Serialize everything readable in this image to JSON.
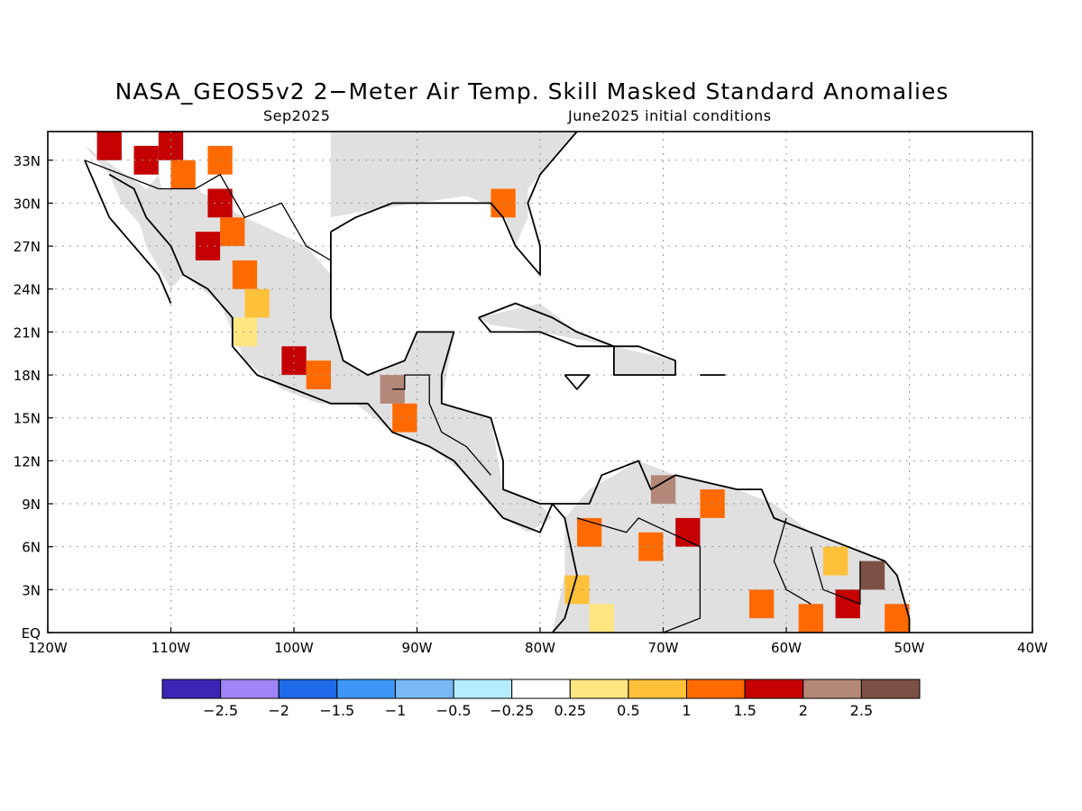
{
  "title": "NASA_GEOS5v2 2−Meter Air Temp. Skill Masked Standard Anomalies",
  "valid_period": "Sep2025",
  "initial_conditions": "June2025 initial conditions",
  "map": {
    "lon_range": [
      -120,
      -40
    ],
    "lat_range": [
      0,
      35
    ],
    "lon_ticks": [
      {
        "value": -120,
        "label": "120W"
      },
      {
        "value": -110,
        "label": "110W"
      },
      {
        "value": -100,
        "label": "100W"
      },
      {
        "value": -90,
        "label": "90W"
      },
      {
        "value": -80,
        "label": "80W"
      },
      {
        "value": -70,
        "label": "70W"
      },
      {
        "value": -60,
        "label": "60W"
      },
      {
        "value": -50,
        "label": "50W"
      },
      {
        "value": -40,
        "label": "40W"
      }
    ],
    "lat_ticks": [
      {
        "value": 0,
        "label": "EQ"
      },
      {
        "value": 3,
        "label": "3N"
      },
      {
        "value": 6,
        "label": "6N"
      },
      {
        "value": 9,
        "label": "9N"
      },
      {
        "value": 12,
        "label": "12N"
      },
      {
        "value": 15,
        "label": "15N"
      },
      {
        "value": 18,
        "label": "18N"
      },
      {
        "value": 21,
        "label": "21N"
      },
      {
        "value": 24,
        "label": "24N"
      },
      {
        "value": 27,
        "label": "27N"
      },
      {
        "value": 30,
        "label": "30N"
      },
      {
        "value": 33,
        "label": "33N"
      }
    ],
    "grid": "dotted",
    "masked_land_color": "#e0e0e0"
  },
  "colorbar": {
    "colors": [
      "#3b24b3",
      "#9f85f5",
      "#1f6ae8",
      "#3d96f5",
      "#78b9f5",
      "#b4ecfb",
      "#ffffff",
      "#ffe680",
      "#ffc13a",
      "#ff6a00",
      "#c40000",
      "#b48878",
      "#7d5044"
    ],
    "labels": [
      "−2.5",
      "−2",
      "−1.5",
      "−1",
      "−0.5",
      "−0.25",
      "0.25",
      "0.5",
      "1",
      "1.5",
      "2",
      "2.5"
    ]
  },
  "anomaly_cells": [
    {
      "lon": -115,
      "lat": 34,
      "v": 1.8
    },
    {
      "lon": -112,
      "lat": 33,
      "v": 1.8
    },
    {
      "lon": -110,
      "lat": 34,
      "v": 1.8
    },
    {
      "lon": -109,
      "lat": 32,
      "v": 1.3
    },
    {
      "lon": -106,
      "lat": 33,
      "v": 1.3
    },
    {
      "lon": -106,
      "lat": 30,
      "v": 1.8
    },
    {
      "lon": -105,
      "lat": 28,
      "v": 1.3
    },
    {
      "lon": -107,
      "lat": 27,
      "v": 1.8
    },
    {
      "lon": -104,
      "lat": 25,
      "v": 1.3
    },
    {
      "lon": -103,
      "lat": 23,
      "v": 0.7
    },
    {
      "lon": -104,
      "lat": 21,
      "v": 0.4
    },
    {
      "lon": -100,
      "lat": 19,
      "v": 1.8
    },
    {
      "lon": -98,
      "lat": 18,
      "v": 1.3
    },
    {
      "lon": -92,
      "lat": 17,
      "v": 2.3
    },
    {
      "lon": -91,
      "lat": 15,
      "v": 1.3
    },
    {
      "lon": -83,
      "lat": 30,
      "v": 1.3
    },
    {
      "lon": -76,
      "lat": 7,
      "v": 1.3
    },
    {
      "lon": -77,
      "lat": 3,
      "v": 0.7
    },
    {
      "lon": -75,
      "lat": 1,
      "v": 0.4
    },
    {
      "lon": -71,
      "lat": 6,
      "v": 1.3
    },
    {
      "lon": -68,
      "lat": 7,
      "v": 1.8
    },
    {
      "lon": -70,
      "lat": 10,
      "v": 2.3
    },
    {
      "lon": -66,
      "lat": 9,
      "v": 1.3
    },
    {
      "lon": -62,
      "lat": 2,
      "v": 1.3
    },
    {
      "lon": -58,
      "lat": 1,
      "v": 1.3
    },
    {
      "lon": -55,
      "lat": 2,
      "v": 1.8
    },
    {
      "lon": -53,
      "lat": 4,
      "v": 2.8
    },
    {
      "lon": -51,
      "lat": 1,
      "v": 1.3
    },
    {
      "lon": -56,
      "lat": 5,
      "v": 0.7
    }
  ],
  "coastlines": [
    [
      [
        -117,
        33
      ],
      [
        -116,
        31
      ],
      [
        -115,
        29
      ],
      [
        -113,
        27
      ],
      [
        -111,
        25
      ],
      [
        -110,
        23
      ]
    ],
    [
      [
        -115,
        32
      ],
      [
        -113,
        31
      ],
      [
        -112,
        29
      ],
      [
        -110,
        27
      ],
      [
        -109,
        25
      ],
      [
        -107,
        24
      ],
      [
        -105,
        22
      ],
      [
        -105,
        20
      ],
      [
        -103,
        18
      ],
      [
        -100,
        17
      ],
      [
        -97,
        16
      ],
      [
        -94,
        16
      ],
      [
        -92,
        14
      ],
      [
        -89,
        13
      ],
      [
        -87,
        12
      ],
      [
        -85,
        10
      ],
      [
        -83,
        8
      ],
      [
        -80,
        7
      ],
      [
        -79,
        9
      ],
      [
        -78,
        8
      ],
      [
        -77,
        4
      ],
      [
        -78,
        1
      ],
      [
        -79,
        0
      ]
    ],
    [
      [
        -97,
        28
      ],
      [
        -97,
        25
      ],
      [
        -97,
        22
      ],
      [
        -96,
        19
      ],
      [
        -94,
        18
      ],
      [
        -91,
        19
      ],
      [
        -90,
        21
      ],
      [
        -87,
        21
      ],
      [
        -88,
        18
      ],
      [
        -88,
        16
      ],
      [
        -84,
        15
      ],
      [
        -83,
        12
      ],
      [
        -83,
        10
      ],
      [
        -80,
        9
      ],
      [
        -76,
        9
      ],
      [
        -75,
        11
      ],
      [
        -72,
        12
      ],
      [
        -71,
        10
      ],
      [
        -69,
        11
      ],
      [
        -64,
        10
      ],
      [
        -62,
        10
      ],
      [
        -61,
        8
      ],
      [
        -58,
        7
      ],
      [
        -55,
        6
      ],
      [
        -52,
        5
      ],
      [
        -51,
        4
      ],
      [
        -50,
        1
      ],
      [
        -50,
        0
      ]
    ],
    [
      [
        -97,
        28
      ],
      [
        -95,
        29
      ],
      [
        -92,
        30
      ],
      [
        -89,
        30
      ],
      [
        -86,
        30
      ],
      [
        -84,
        30
      ],
      [
        -83,
        29
      ],
      [
        -82,
        27
      ],
      [
        -80,
        25
      ],
      [
        -80,
        27
      ],
      [
        -81,
        30
      ],
      [
        -80,
        32
      ],
      [
        -79,
        33
      ],
      [
        -77,
        35
      ]
    ],
    [
      [
        -85,
        22
      ],
      [
        -82,
        23
      ],
      [
        -79,
        22
      ],
      [
        -77,
        21
      ],
      [
        -74,
        20
      ],
      [
        -77,
        20
      ],
      [
        -80,
        21
      ],
      [
        -84,
        21
      ],
      [
        -85,
        22
      ]
    ],
    [
      [
        -74,
        20
      ],
      [
        -72,
        20
      ],
      [
        -69,
        19
      ],
      [
        -69,
        18
      ],
      [
        -72,
        18
      ],
      [
        -74,
        18
      ],
      [
        -74,
        20
      ]
    ],
    [
      [
        -78,
        18
      ],
      [
        -76,
        18
      ],
      [
        -77,
        17
      ],
      [
        -78,
        18
      ]
    ],
    [
      [
        -67,
        18
      ],
      [
        -65,
        18
      ],
      [
        -66,
        18
      ],
      [
        -67,
        18
      ]
    ]
  ],
  "borders": [
    [
      [
        -117,
        33
      ],
      [
        -111,
        31
      ],
      [
        -108,
        31
      ],
      [
        -106,
        32
      ],
      [
        -104,
        29
      ],
      [
        -101,
        30
      ],
      [
        -99,
        27
      ],
      [
        -97,
        26
      ]
    ],
    [
      [
        -92,
        17
      ],
      [
        -91,
        17
      ],
      [
        -91,
        18
      ],
      [
        -89,
        18
      ],
      [
        -89,
        16
      ]
    ],
    [
      [
        -89,
        16
      ],
      [
        -88,
        14
      ],
      [
        -86,
        13
      ],
      [
        -85,
        12
      ],
      [
        -84,
        11
      ]
    ],
    [
      [
        -77,
        8
      ],
      [
        -73,
        7
      ],
      [
        -72,
        8
      ],
      [
        -67,
        6
      ],
      [
        -67,
        1
      ],
      [
        -70,
        0
      ]
    ],
    [
      [
        -60,
        8
      ],
      [
        -61,
        5
      ],
      [
        -60,
        3
      ],
      [
        -58,
        2
      ]
    ],
    [
      [
        -58,
        6
      ],
      [
        -57,
        3
      ],
      [
        -54,
        2
      ],
      [
        -54,
        5
      ]
    ]
  ],
  "masked_land": [
    [
      [
        -117,
        34
      ],
      [
        -112,
        31
      ],
      [
        -108,
        31
      ],
      [
        -104,
        29
      ],
      [
        -99,
        27
      ],
      [
        -97,
        25
      ],
      [
        -97,
        22
      ],
      [
        -96,
        19
      ],
      [
        -94,
        18
      ],
      [
        -91,
        19
      ],
      [
        -90,
        21
      ],
      [
        -87,
        21
      ],
      [
        -88,
        16
      ],
      [
        -84,
        15
      ],
      [
        -83,
        10
      ],
      [
        -80,
        9
      ],
      [
        -79,
        8
      ],
      [
        -81,
        7
      ],
      [
        -83,
        8
      ],
      [
        -86,
        11
      ],
      [
        -89,
        13
      ],
      [
        -92,
        14
      ],
      [
        -95,
        16
      ],
      [
        -98,
        16
      ],
      [
        -101,
        17
      ],
      [
        -104,
        19
      ],
      [
        -105,
        21
      ],
      [
        -106,
        23
      ],
      [
        -109,
        25
      ],
      [
        -111,
        27
      ],
      [
        -114,
        30
      ],
      [
        -115,
        32
      ]
    ],
    [
      [
        -97,
        35
      ],
      [
        -97,
        29
      ],
      [
        -94,
        29.5
      ],
      [
        -90,
        30
      ],
      [
        -86,
        30.5
      ],
      [
        -83,
        29.5
      ],
      [
        -82,
        27
      ],
      [
        -81,
        29
      ],
      [
        -81,
        31
      ],
      [
        -79,
        33
      ],
      [
        -77,
        35
      ]
    ],
    [
      [
        -111,
        32
      ],
      [
        -110,
        28
      ],
      [
        -108,
        26
      ],
      [
        -110,
        24
      ],
      [
        -112,
        27
      ],
      [
        -113,
        30
      ]
    ],
    [
      [
        -78,
        8
      ],
      [
        -76,
        10
      ],
      [
        -72,
        12
      ],
      [
        -69,
        11
      ],
      [
        -64,
        10
      ],
      [
        -61,
        9
      ],
      [
        -58,
        7
      ],
      [
        -55,
        6
      ],
      [
        -52,
        5
      ],
      [
        -51,
        4
      ],
      [
        -50,
        1
      ],
      [
        -50,
        0
      ],
      [
        -79,
        0
      ],
      [
        -78,
        4
      ]
    ],
    [
      [
        -85,
        22
      ],
      [
        -80,
        23
      ],
      [
        -77,
        21
      ],
      [
        -74,
        20
      ],
      [
        -80,
        21
      ],
      [
        -84,
        21.5
      ]
    ],
    [
      [
        -74,
        20
      ],
      [
        -69,
        19
      ],
      [
        -69,
        18
      ],
      [
        -74,
        18
      ]
    ]
  ]
}
